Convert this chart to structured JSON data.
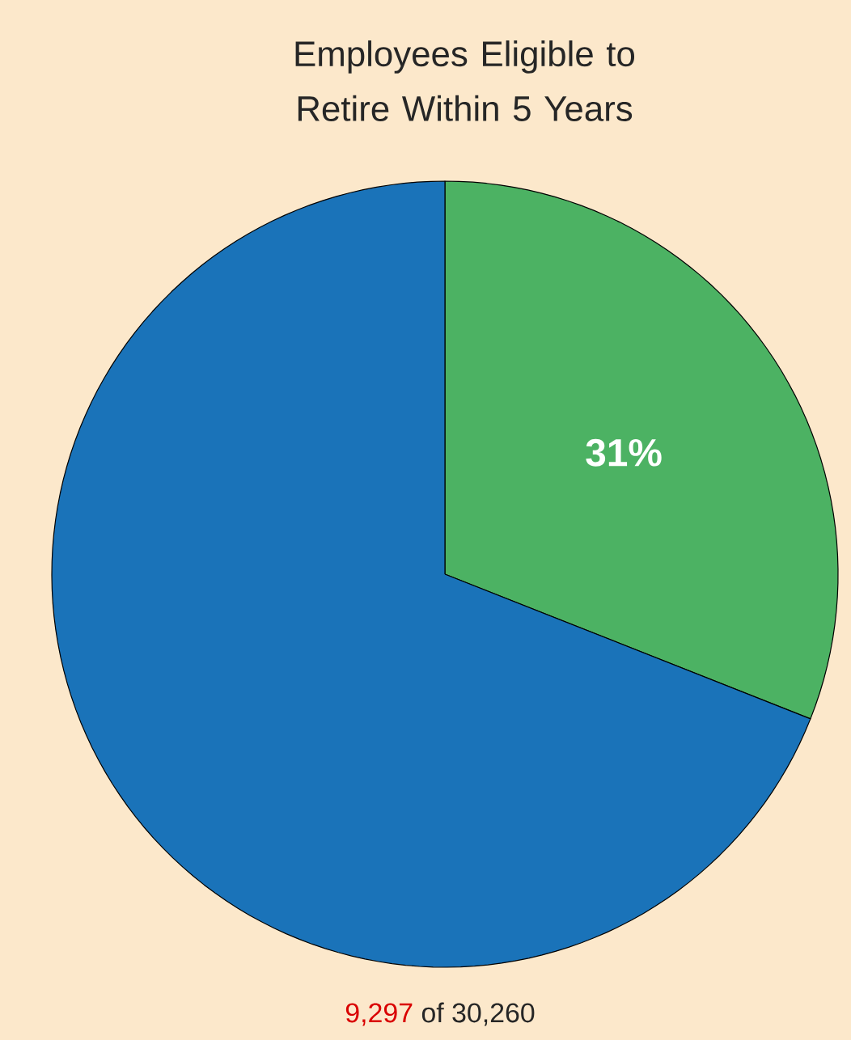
{
  "chart_data": {
    "type": "pie",
    "title": "Employees Eligible to Retire Within 5 Years",
    "categories": [
      null,
      null
    ],
    "values": [
      31,
      69
    ],
    "colors": [
      "#4cb263",
      "#1a73b9"
    ],
    "value_labels": [
      "31%",
      null
    ],
    "annotations": [
      "9,297",
      "of 30,260"
    ]
  }
}
